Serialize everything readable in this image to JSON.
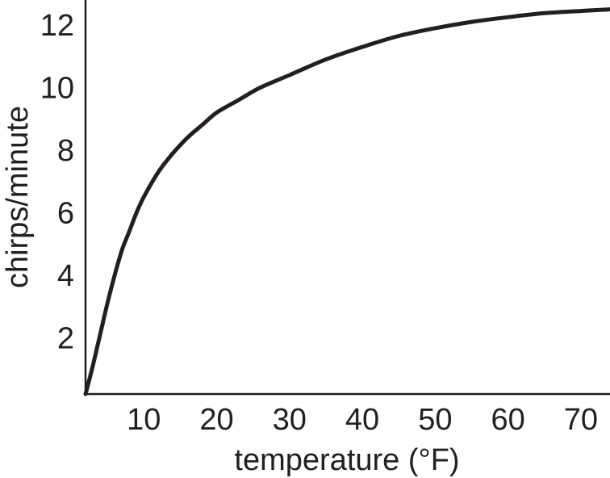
{
  "chart_data": {
    "type": "line",
    "title": "",
    "xlabel": "temperature (°F)",
    "ylabel": "chirps/minute",
    "xlim": [
      2,
      74
    ],
    "ylim": [
      0.2,
      12.8
    ],
    "grid": false,
    "x_ticks": [
      10,
      20,
      30,
      40,
      50,
      60,
      70
    ],
    "y_ticks": [
      2,
      4,
      6,
      8,
      10,
      12
    ],
    "series": [
      {
        "color": "#231f20",
        "points": [
          {
            "x": 2,
            "y": 0.2
          },
          {
            "x": 3,
            "y": 1.1
          },
          {
            "x": 4,
            "y": 2.1
          },
          {
            "x": 5,
            "y": 3.1
          },
          {
            "x": 6,
            "y": 4.0
          },
          {
            "x": 7,
            "y": 4.8
          },
          {
            "x": 8,
            "y": 5.4
          },
          {
            "x": 9,
            "y": 6.0
          },
          {
            "x": 10,
            "y": 6.5
          },
          {
            "x": 12,
            "y": 7.3
          },
          {
            "x": 14,
            "y": 7.9
          },
          {
            "x": 16,
            "y": 8.4
          },
          {
            "x": 18,
            "y": 8.8
          },
          {
            "x": 20,
            "y": 9.2
          },
          {
            "x": 23,
            "y": 9.6
          },
          {
            "x": 26,
            "y": 10.0
          },
          {
            "x": 30,
            "y": 10.4
          },
          {
            "x": 35,
            "y": 10.9
          },
          {
            "x": 40,
            "y": 11.3
          },
          {
            "x": 45,
            "y": 11.65
          },
          {
            "x": 50,
            "y": 11.9
          },
          {
            "x": 55,
            "y": 12.1
          },
          {
            "x": 60,
            "y": 12.25
          },
          {
            "x": 65,
            "y": 12.38
          },
          {
            "x": 70,
            "y": 12.45
          },
          {
            "x": 74,
            "y": 12.5
          }
        ]
      }
    ]
  }
}
